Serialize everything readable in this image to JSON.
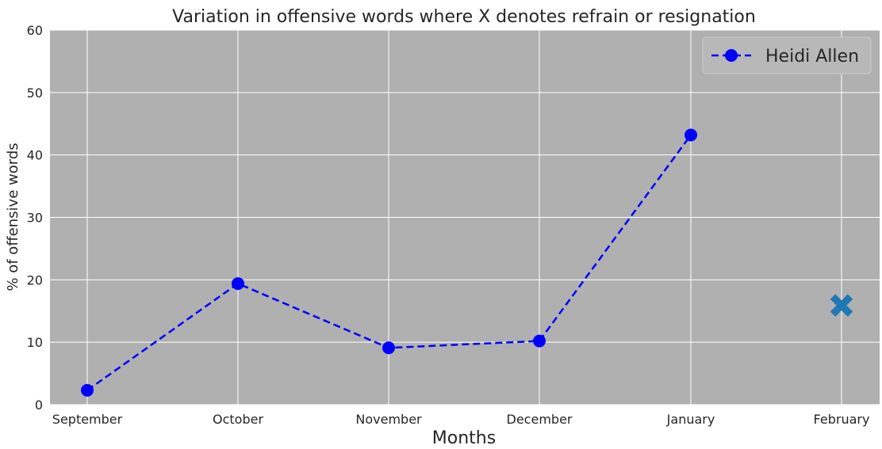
{
  "chart_data": {
    "type": "line",
    "title": "Variation in offensive words where X denotes refrain or resignation",
    "xlabel": "Months",
    "ylabel": "% of offensive words",
    "categories": [
      "September",
      "October",
      "November",
      "December",
      "January",
      "February"
    ],
    "ylim": [
      0,
      60
    ],
    "yticks": [
      0,
      10,
      20,
      30,
      40,
      50,
      60
    ],
    "grid": true,
    "legend_position": "top-right",
    "series": [
      {
        "name": "Heidi Allen",
        "values": [
          2.3,
          19.4,
          9.1,
          10.2,
          43.2,
          null
        ],
        "color": "#0000ff",
        "line_style": "dashed",
        "marker": "circle"
      }
    ],
    "special_markers": [
      {
        "category": "February",
        "value": 15.9,
        "marker": "X",
        "meaning": "refrain or resignation",
        "color": "#1f77b4"
      }
    ],
    "colors": {
      "plot_background": "#b0b0b0",
      "grid": "#ffffff",
      "legend_background": "#b8b8b8"
    }
  }
}
